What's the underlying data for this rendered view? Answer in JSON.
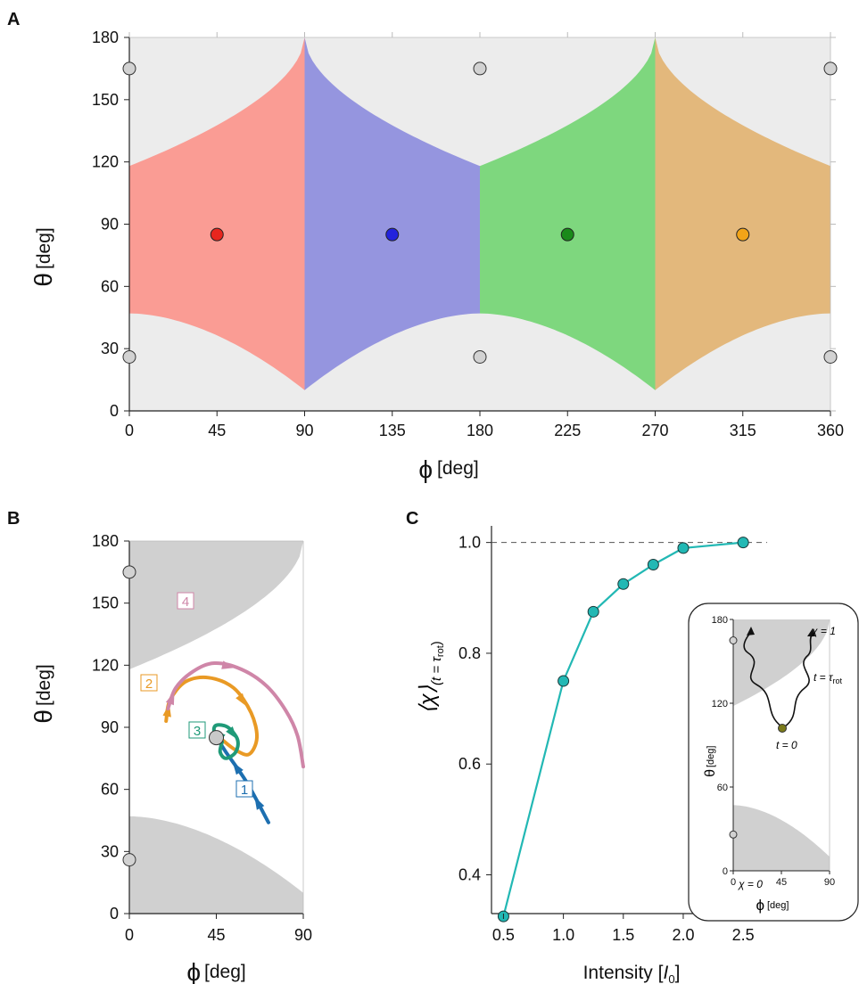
{
  "colors": {
    "background_region": "#ececec",
    "region_red": "#fa9c94",
    "region_blue": "#9595df",
    "region_green": "#7ed77e",
    "region_orange": "#e3b87c",
    "forbidden_gray": "#d0d0d0",
    "traj_blue": "#1d6fb0",
    "traj_orange": "#e99a25",
    "traj_green": "#1f9a78",
    "traj_pink": "#cf86a8",
    "curve_teal": "#22b8b4"
  },
  "panel_a": {
    "letter": "A",
    "x_symbol": "ϕ",
    "x_unit": "[deg]",
    "y_symbol": "θ",
    "y_unit": "[deg]",
    "x_ticks": [
      "0",
      "45",
      "90",
      "135",
      "180",
      "225",
      "270",
      "315",
      "360"
    ],
    "y_ticks": [
      "0",
      "30",
      "60",
      "90",
      "120",
      "150",
      "180"
    ]
  },
  "panel_b": {
    "letter": "B",
    "x_symbol": "ϕ",
    "x_unit": "[deg]",
    "y_symbol": "θ",
    "y_unit": "[deg]",
    "x_ticks": [
      "0",
      "45",
      "90"
    ],
    "y_ticks": [
      "0",
      "30",
      "60",
      "90",
      "120",
      "150",
      "180"
    ],
    "trajectory_labels": [
      "1",
      "2",
      "3",
      "4"
    ]
  },
  "panel_c": {
    "letter": "C",
    "x_title": "Intensity [",
    "x_title_var": "I",
    "x_title_sub": "0",
    "x_title_end": "]",
    "y_title_main": "⟨χ⟩",
    "y_title_sub": "(t = τ",
    "y_title_subsub": "rot",
    "y_title_close": ")",
    "x_ticks": [
      "0.5",
      "1.0",
      "1.5",
      "2.0",
      "2.5"
    ],
    "y_ticks": [
      "0.4",
      "0.6",
      "0.8",
      "1.0"
    ],
    "inset": {
      "x_symbol": "ϕ",
      "x_unit": "[deg]",
      "y_symbol": "θ",
      "y_unit": "[deg]",
      "x_ticks": [
        "0",
        "45",
        "90"
      ],
      "y_ticks": [
        "0",
        "60",
        "120",
        "180"
      ],
      "label_chi0": "χ = 0",
      "label_chi1": "χ = 1",
      "label_t_main": "t = τ",
      "label_t_sub": "rot",
      "label_t0": "t = 0"
    }
  },
  "chart_data": [
    {
      "panel": "A",
      "type": "area",
      "xlabel": "ϕ [deg]",
      "ylabel": "θ [deg]",
      "xlim": [
        0,
        360
      ],
      "ylim": [
        0,
        180
      ],
      "regions": [
        {
          "color": "region_red",
          "phi_range": [
            0,
            90
          ]
        },
        {
          "color": "region_blue",
          "phi_range": [
            90,
            180
          ]
        },
        {
          "color": "region_green",
          "phi_range": [
            180,
            270
          ]
        },
        {
          "color": "region_orange",
          "phi_range": [
            270,
            360
          ]
        }
      ],
      "region_centers": [
        {
          "phi": 45,
          "theta": 85,
          "color": "#e8261e"
        },
        {
          "phi": 135,
          "theta": 85,
          "color": "#2222dd"
        },
        {
          "phi": 225,
          "theta": 85,
          "color": "#1a8a1a"
        },
        {
          "phi": 315,
          "theta": 85,
          "color": "#f2a418"
        }
      ],
      "gray_points": [
        {
          "phi": 0,
          "theta": 165
        },
        {
          "phi": 180,
          "theta": 165
        },
        {
          "phi": 360,
          "theta": 165
        },
        {
          "phi": 0,
          "theta": 26
        },
        {
          "phi": 180,
          "theta": 26
        },
        {
          "phi": 360,
          "theta": 26
        }
      ]
    },
    {
      "panel": "B",
      "type": "line",
      "xlabel": "ϕ [deg]",
      "ylabel": "θ [deg]",
      "xlim": [
        0,
        90
      ],
      "ylim": [
        0,
        180
      ],
      "start_point": {
        "phi": 45,
        "theta": 85
      },
      "trajectories": [
        {
          "label": "1",
          "color": "traj_blue",
          "points": [
            [
              72,
              44
            ],
            [
              61,
              63
            ],
            [
              50,
              78
            ],
            [
              46,
              84
            ]
          ]
        },
        {
          "label": "2",
          "color": "traj_orange",
          "points": [
            [
              19,
              93
            ],
            [
              21,
              103
            ],
            [
              29,
              112
            ],
            [
              41,
              114
            ],
            [
              54,
              109
            ],
            [
              63,
              97
            ],
            [
              66,
              85
            ],
            [
              62,
              77
            ],
            [
              55,
              79
            ],
            [
              48,
              84
            ]
          ]
        },
        {
          "label": "3",
          "color": "traj_green",
          "points": [
            [
              48,
              85
            ],
            [
              44,
              88
            ],
            [
              45,
              91
            ],
            [
              51,
              90
            ],
            [
              56,
              84
            ],
            [
              55,
              78
            ],
            [
              50,
              75
            ],
            [
              47,
              78
            ],
            [
              48,
              83
            ]
          ]
        },
        {
          "label": "4",
          "color": "traj_pink",
          "points": [
            [
              20,
              99
            ],
            [
              24,
              109
            ],
            [
              33,
              117
            ],
            [
              44,
              121
            ],
            [
              58,
              118
            ],
            [
              71,
              110
            ],
            [
              81,
              98
            ],
            [
              87,
              86
            ],
            [
              90,
              71
            ]
          ]
        }
      ]
    },
    {
      "panel": "C",
      "type": "line",
      "xlabel": "Intensity [I0]",
      "ylabel": "⟨χ⟩(t = τrot)",
      "xlim": [
        0.4,
        2.7
      ],
      "ylim": [
        0.33,
        1.03
      ],
      "reference_line": 1.0,
      "x": [
        0.5,
        1.0,
        1.25,
        1.5,
        1.75,
        2.0,
        2.5
      ],
      "y": [
        0.325,
        0.75,
        0.875,
        0.925,
        0.96,
        0.99,
        1.0
      ]
    }
  ]
}
